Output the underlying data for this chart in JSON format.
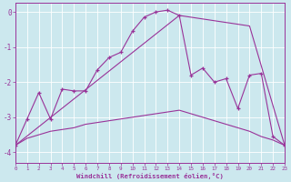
{
  "xlabel": "Windchill (Refroidissement éolien,°C)",
  "bg_color": "#cce8ee",
  "line_color": "#993399",
  "grid_color": "#ffffff",
  "xlim": [
    0,
    23
  ],
  "ylim": [
    -4.3,
    0.25
  ],
  "xticks": [
    0,
    1,
    2,
    3,
    4,
    5,
    6,
    7,
    8,
    9,
    10,
    11,
    12,
    13,
    14,
    15,
    16,
    17,
    18,
    19,
    20,
    21,
    22,
    23
  ],
  "yticks": [
    0,
    -1,
    -2,
    -3,
    -4
  ],
  "line1_x": [
    0,
    1,
    2,
    3,
    4,
    5,
    6,
    7,
    8,
    9,
    10,
    11,
    12,
    13,
    14,
    15,
    16,
    17,
    18,
    19,
    20,
    21,
    22,
    23
  ],
  "line1_y": [
    -3.8,
    -3.05,
    -2.3,
    -3.05,
    -2.2,
    -2.25,
    -2.25,
    -1.65,
    -1.3,
    -1.15,
    -0.55,
    -0.15,
    0.0,
    0.05,
    -0.1,
    -1.8,
    -1.6,
    -2.0,
    -1.9,
    -2.75,
    -1.8,
    -1.75,
    -3.55,
    -3.8
  ],
  "line2_x": [
    0,
    14,
    20,
    23
  ],
  "line2_y": [
    -3.8,
    -0.1,
    -0.4,
    -3.8
  ],
  "line3_x": [
    0,
    1,
    2,
    3,
    4,
    5,
    6,
    7,
    8,
    9,
    10,
    11,
    12,
    13,
    14,
    15,
    16,
    17,
    18,
    19,
    20,
    21,
    22,
    23
  ],
  "line3_y": [
    -3.8,
    -3.6,
    -3.5,
    -3.4,
    -3.35,
    -3.3,
    -3.2,
    -3.15,
    -3.1,
    -3.05,
    -3.0,
    -2.95,
    -2.9,
    -2.85,
    -2.8,
    -2.9,
    -3.0,
    -3.1,
    -3.2,
    -3.3,
    -3.4,
    -3.55,
    -3.65,
    -3.8
  ]
}
